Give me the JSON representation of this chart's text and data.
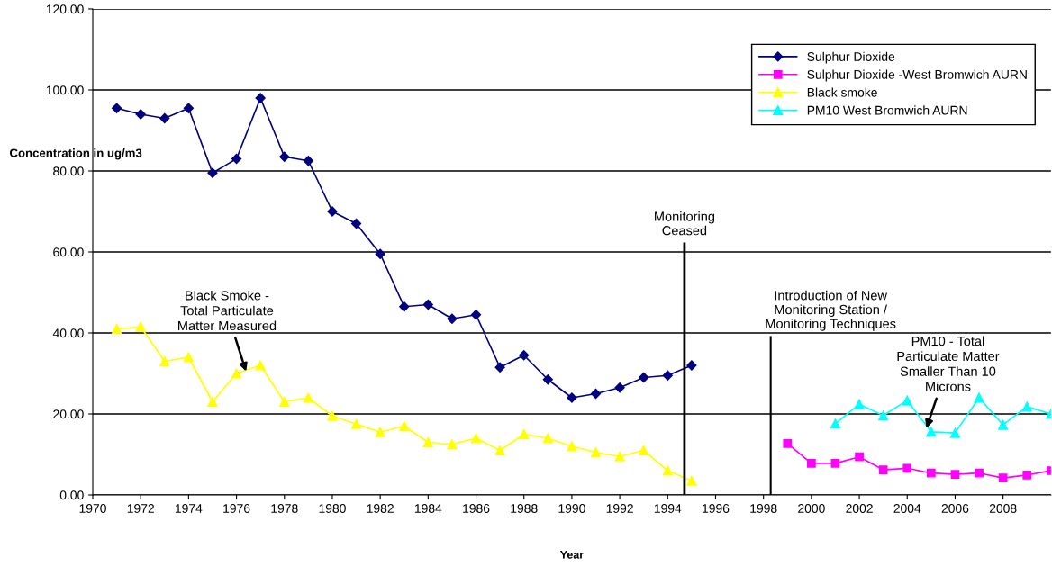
{
  "chart_data": {
    "type": "line",
    "xlabel": "Year",
    "ylabel": "Concentration in ug/m3",
    "xlim": [
      1970,
      2010
    ],
    "xticks": [
      1970,
      1972,
      1974,
      1976,
      1978,
      1980,
      1982,
      1984,
      1986,
      1988,
      1990,
      1992,
      1994,
      1996,
      1998,
      2000,
      2002,
      2004,
      2006,
      2008
    ],
    "ylim": [
      0,
      120
    ],
    "yticks": [
      {
        "value": 0,
        "label": "0.00"
      },
      {
        "value": 20,
        "label": "20.00"
      },
      {
        "value": 40,
        "label": "40.00"
      },
      {
        "value": 60,
        "label": "60.00"
      },
      {
        "value": 80,
        "label": "80.00"
      },
      {
        "value": 100,
        "label": "100.00"
      },
      {
        "value": 120,
        "label": "120.00"
      }
    ],
    "grid": "y",
    "legend": "top right",
    "series": [
      {
        "name": "Sulphur Dioxide",
        "color": "#000080",
        "marker": "diamond",
        "x": [
          1971,
          1972,
          1973,
          1974,
          1975,
          1976,
          1977,
          1978,
          1979,
          1980,
          1981,
          1982,
          1983,
          1984,
          1985,
          1986,
          1987,
          1988,
          1989,
          1990,
          1991,
          1992,
          1993,
          1994,
          1995
        ],
        "values": [
          95.5,
          94,
          93,
          95.5,
          79.5,
          83,
          98,
          83.5,
          82.5,
          70,
          67,
          59.5,
          46.5,
          47,
          43.5,
          44.5,
          31.5,
          34.5,
          28.5,
          24,
          25,
          26.5,
          29,
          29.5,
          32
        ]
      },
      {
        "name": "Sulphur Dioxide -West Bromwich AURN",
        "color": "#ff00ff",
        "marker": "square",
        "x": [
          1999,
          2000,
          2001,
          2002,
          2003,
          2004,
          2005,
          2006,
          2007,
          2008,
          2009,
          2010
        ],
        "values": [
          12.7,
          7.8,
          7.8,
          9.4,
          6.2,
          6.6,
          5.4,
          5.1,
          5.4,
          4.2,
          4.9,
          6.0
        ]
      },
      {
        "name": "Black smoke",
        "color": "#ffff00",
        "marker": "triangle",
        "x": [
          1971,
          1972,
          1973,
          1974,
          1975,
          1976,
          1977,
          1978,
          1979,
          1980,
          1981,
          1982,
          1983,
          1984,
          1985,
          1986,
          1987,
          1988,
          1989,
          1990,
          1991,
          1992,
          1993,
          1994,
          1995
        ],
        "values": [
          41,
          41.5,
          33,
          34,
          23,
          30,
          32,
          23,
          24,
          19.5,
          17.5,
          15.5,
          17,
          13,
          12.5,
          14,
          11,
          15,
          14,
          12,
          10.5,
          9.5,
          11,
          6,
          3.5
        ]
      },
      {
        "name": "PM10 West Bromwich AURN",
        "color": "#00ffff",
        "marker": "triangle",
        "x": [
          2001,
          2002,
          2003,
          2004,
          2005,
          2006,
          2007,
          2008,
          2009,
          2010
        ],
        "values": [
          17.6,
          22.4,
          19.6,
          23.3,
          15.6,
          15.3,
          24,
          17.3,
          21.8,
          20
        ]
      }
    ],
    "ref_lines": [
      {
        "axis": "x",
        "value": 1994.7,
        "label": "Monitoring\nCeased",
        "color": "#000000"
      },
      {
        "axis": "x",
        "value": 1998.3,
        "label": "Introduction of New\nMonitoring Station /\nMonitoring Techniques",
        "color": "#000000"
      }
    ],
    "annotations": [
      {
        "text": "Black Smoke -\nTotal Particulate\nMatter Measured",
        "x": 1976.4,
        "y": 30.5
      },
      {
        "text": "PM10 - Total\nParticulate Matter\nSmaller Than 10\nMicrons",
        "x": 2004.8,
        "y": 16.5
      }
    ]
  }
}
